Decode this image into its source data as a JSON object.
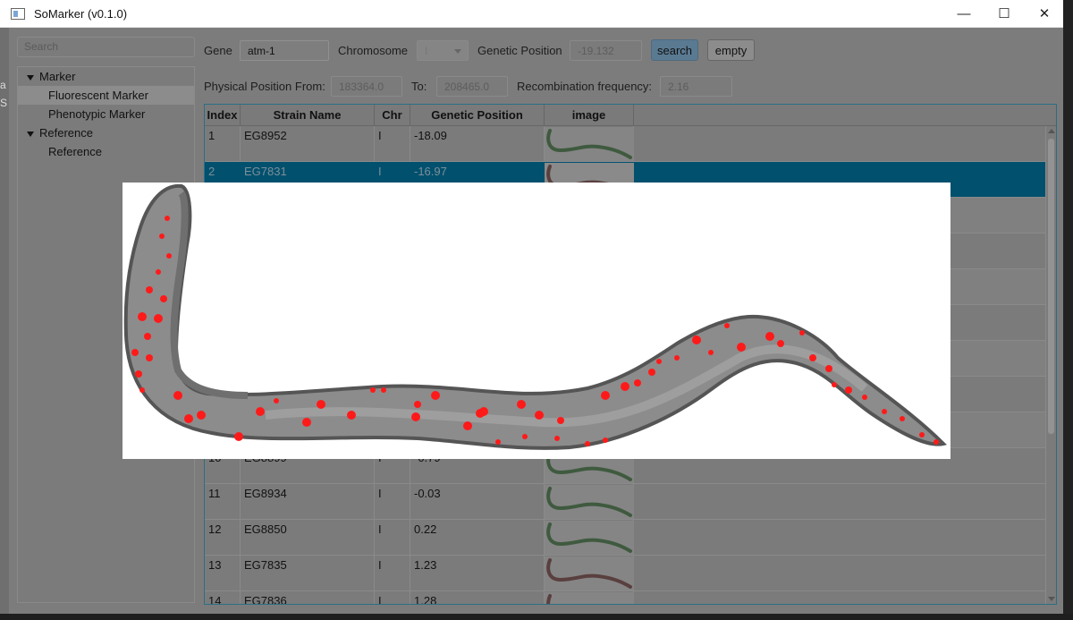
{
  "window": {
    "title": "SoMarker (v0.1.0)"
  },
  "titlebar": {
    "minimize": "—",
    "maximize": "☐",
    "close": "✕"
  },
  "left_strip": {
    "letters": [
      "a",
      "S"
    ]
  },
  "sidebar": {
    "search_placeholder": "Search",
    "items": [
      {
        "label": "Marker",
        "level": 0,
        "expanded": true
      },
      {
        "label": "Fluorescent Marker",
        "level": 1,
        "selected": true
      },
      {
        "label": "Phenotypic Marker",
        "level": 1
      },
      {
        "label": "Reference",
        "level": 0,
        "expanded": true
      },
      {
        "label": "Reference",
        "level": 1
      }
    ]
  },
  "form": {
    "gene_label": "Gene",
    "gene_value": "atm-1",
    "chromosome_label": "Chromosome",
    "chromosome_value": "I",
    "genetic_position_label": "Genetic Position",
    "genetic_position_value": "-19.132",
    "search_button": "search",
    "empty_button": "empty",
    "physical_from_label": "Physical Position From:",
    "physical_from_value": "183364.0",
    "to_label": "To:",
    "to_value": "208465.0",
    "recomb_label": "Recombination frequency:",
    "recomb_value": "2.16"
  },
  "table": {
    "headers": [
      "Index",
      "Strain Name",
      "Chr",
      "Genetic Position",
      "image"
    ],
    "rows": [
      {
        "index": "1",
        "strain": "EG8952",
        "chr": "I",
        "pos": "-18.09",
        "thumb": "green"
      },
      {
        "index": "2",
        "strain": "EG7831",
        "chr": "I",
        "pos": "-16.97",
        "thumb": "red",
        "selected": true
      },
      {
        "index": "10",
        "strain": "EG8899",
        "chr": "I",
        "pos": "-0.79",
        "thumb": "green"
      },
      {
        "index": "11",
        "strain": "EG8934",
        "chr": "I",
        "pos": "-0.03",
        "thumb": "green"
      },
      {
        "index": "12",
        "strain": "EG8850",
        "chr": "I",
        "pos": "0.22",
        "thumb": "green"
      },
      {
        "index": "13",
        "strain": "EG7835",
        "chr": "I",
        "pos": "1.23",
        "thumb": "red"
      },
      {
        "index": "14",
        "strain": "EG7836",
        "chr": "I",
        "pos": "1.28",
        "thumb": "red"
      }
    ]
  },
  "colors": {
    "selection": "#00506e",
    "accent_blue": "#5a7a92",
    "marker_red": "#ff1a1a"
  }
}
